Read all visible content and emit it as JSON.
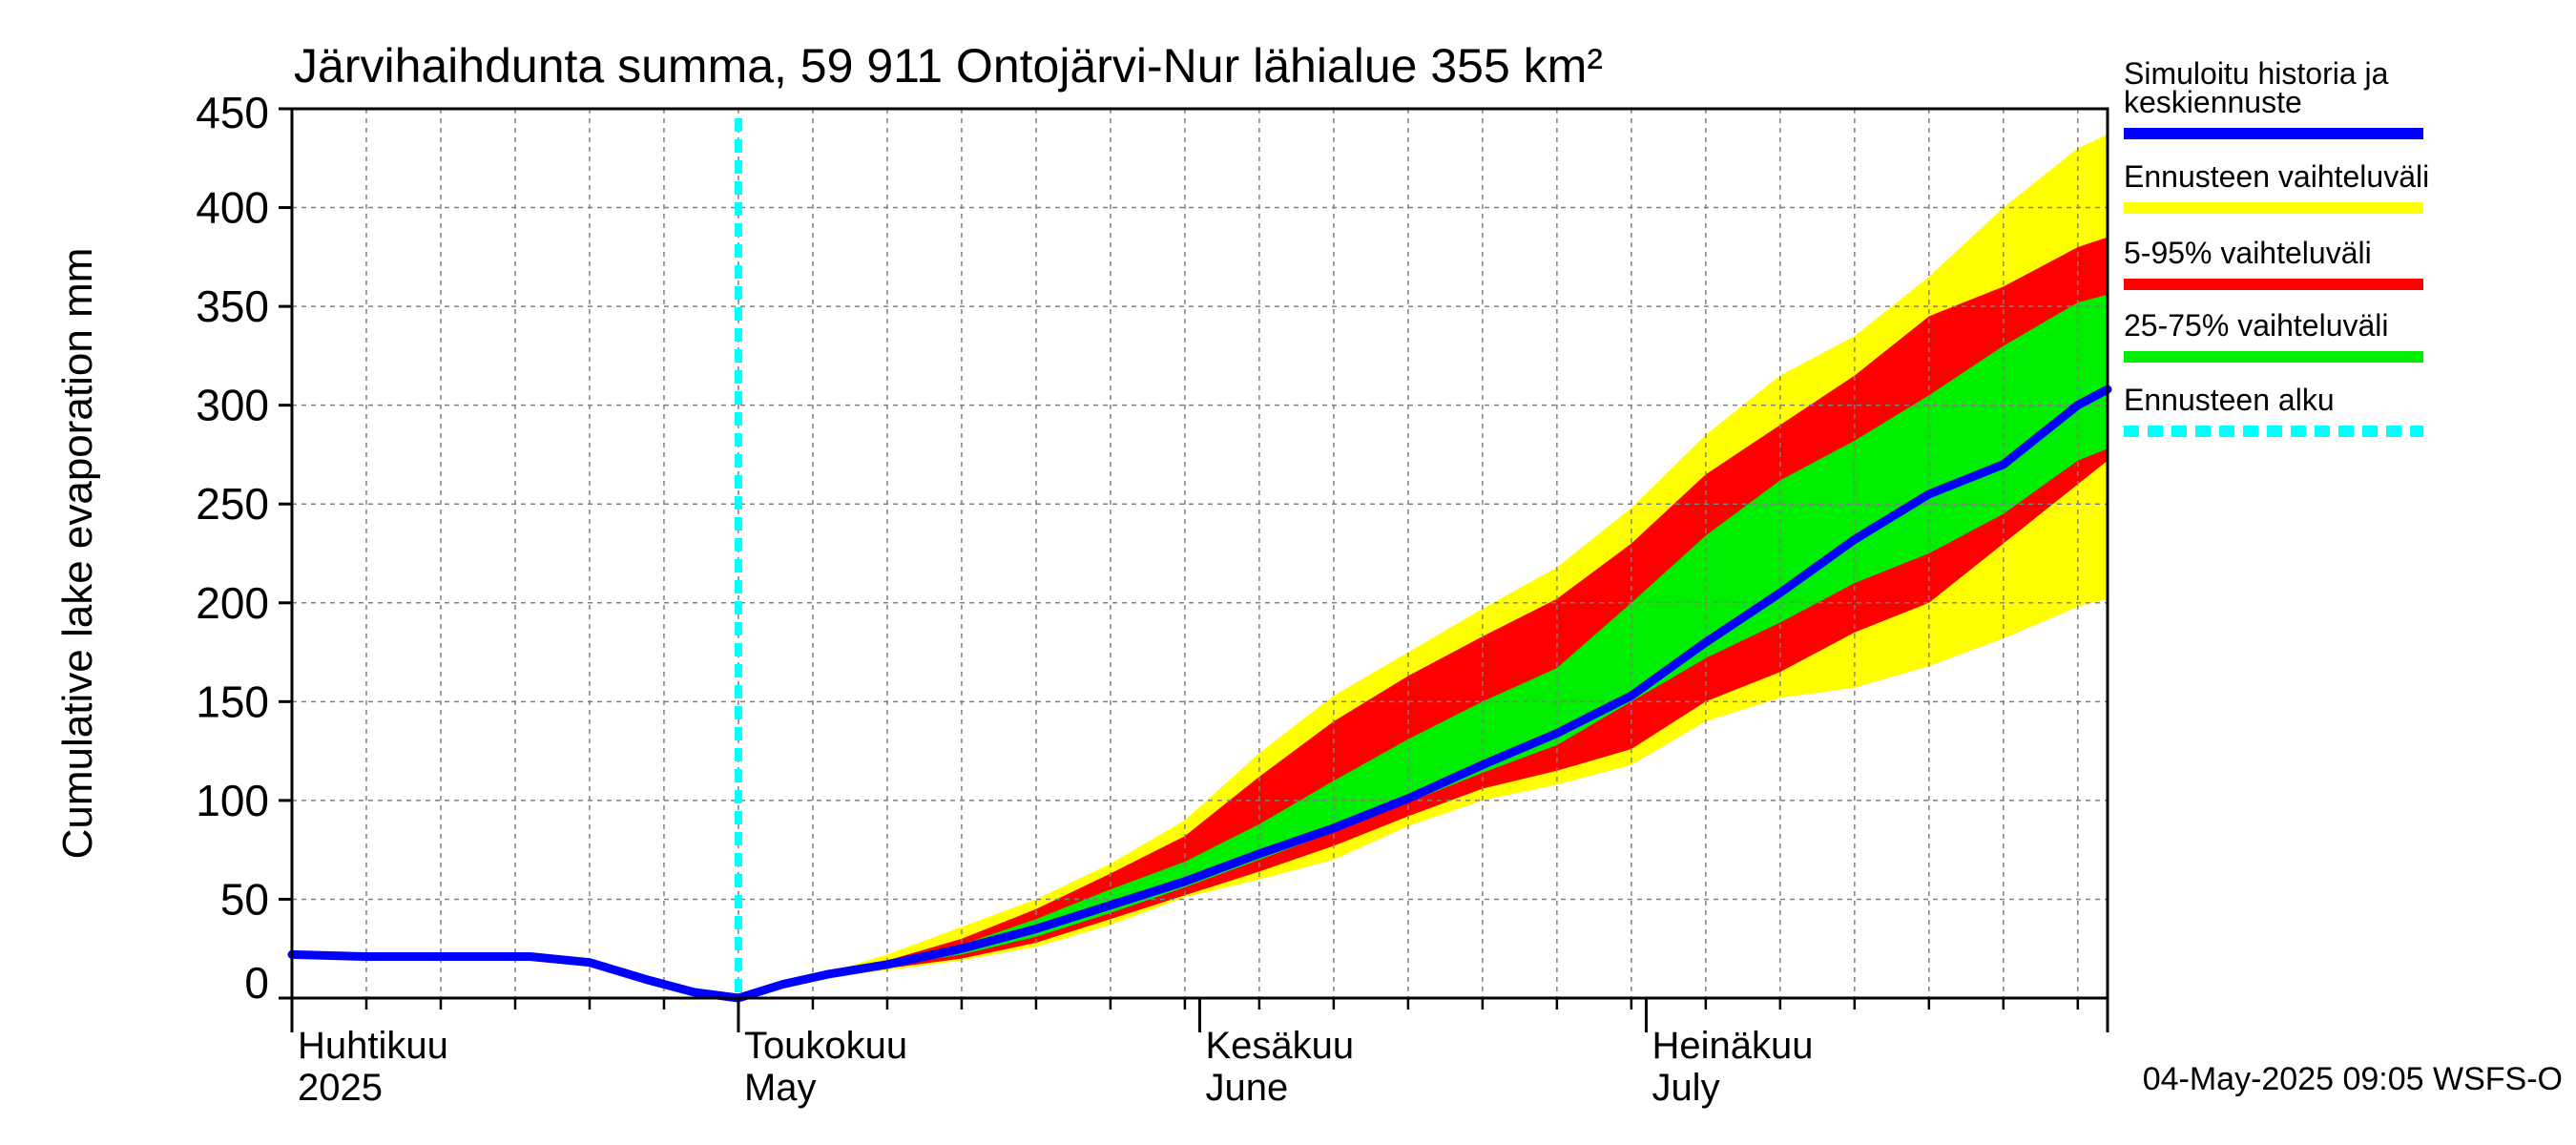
{
  "chart_data": {
    "type": "area",
    "title": "Järvihaihdunta summa, 59 911 Ontojärvi-Nur lähialue 355 km²",
    "ylabel": "Cumulative lake evaporation   mm",
    "xlabel": "",
    "ylim": [
      0,
      450
    ],
    "y_ticks": [
      "0",
      "50",
      "100",
      "150",
      "200",
      "250",
      "300",
      "350",
      "400",
      "450"
    ],
    "x_range_days": [
      0,
      122
    ],
    "month_labels": [
      {
        "day": 0,
        "fi": "Huhtikuu",
        "en": "2025"
      },
      {
        "day": 30,
        "fi": "Toukokuu",
        "en": "May"
      },
      {
        "day": 61,
        "fi": "Kesäkuu",
        "en": "June"
      },
      {
        "day": 91,
        "fi": "Heinäkuu",
        "en": "July"
      }
    ],
    "grid": true,
    "legend_position": "right",
    "forecast_start_day": 30,
    "legend": [
      {
        "label": "Simuloitu historia ja keskiennuste",
        "label_line1": "Simuloitu historia ja",
        "label_line2": "keskiennuste",
        "color": "#0000ff",
        "style": "solid"
      },
      {
        "label": "Ennusteen vaihteluväli",
        "color": "#ffff00",
        "style": "solid"
      },
      {
        "label": "5-95% vaihteluväli",
        "color": "#ff0000",
        "style": "solid"
      },
      {
        "label": "25-75% vaihteluväli",
        "color": "#00ee00",
        "style": "solid"
      },
      {
        "label": "Ennusteen alku",
        "color": "#00ffff",
        "style": "dashed"
      }
    ],
    "timestamp": "04-May-2025 09:05 WSFS-O",
    "colors": {
      "median": "#0000ff",
      "full_range": "#ffff00",
      "p5_95": "#ff0000",
      "p25_75": "#00ee00",
      "forecast_start": "#00ffff",
      "grid": "#808080"
    },
    "x": [
      0,
      5,
      10,
      16,
      20,
      24,
      27,
      30,
      33,
      36,
      40,
      45,
      50,
      55,
      60,
      65,
      70,
      75,
      80,
      85,
      90,
      95,
      100,
      105,
      110,
      115,
      120,
      122
    ],
    "series": [
      {
        "name": "Simuloitu historia ja keskiennuste",
        "role": "median",
        "values": [
          22,
          21,
          21,
          21,
          18,
          9,
          3,
          0,
          7,
          12,
          17,
          25,
          35,
          47,
          59,
          73,
          86,
          101,
          118,
          134,
          153,
          180,
          205,
          232,
          255,
          270,
          300,
          308
        ]
      },
      {
        "name": "Ennusteen vaihteluväli",
        "role": "band",
        "lower": [
          null,
          null,
          null,
          null,
          null,
          null,
          null,
          0,
          7,
          11,
          14,
          19,
          26,
          37,
          51,
          60,
          70,
          87,
          100,
          108,
          118,
          140,
          152,
          157,
          168,
          182,
          198,
          202
        ],
        "upper": [
          null,
          null,
          null,
          null,
          null,
          null,
          null,
          0,
          7,
          13,
          22,
          36,
          50,
          68,
          90,
          124,
          153,
          175,
          197,
          218,
          248,
          285,
          315,
          335,
          365,
          400,
          430,
          437
        ]
      },
      {
        "name": "5-95% vaihteluväli",
        "role": "band",
        "lower": [
          null,
          null,
          null,
          null,
          null,
          null,
          null,
          0,
          7,
          11,
          15,
          20,
          28,
          40,
          52,
          64,
          77,
          92,
          106,
          115,
          126,
          150,
          165,
          185,
          200,
          230,
          260,
          272
        ],
        "upper": [
          null,
          null,
          null,
          null,
          null,
          null,
          null,
          0,
          7,
          13,
          19,
          30,
          45,
          63,
          82,
          112,
          140,
          163,
          183,
          202,
          230,
          265,
          290,
          315,
          345,
          360,
          380,
          385
        ]
      },
      {
        "name": "25-75% vaihteluväli",
        "role": "band",
        "lower": [
          null,
          null,
          null,
          null,
          null,
          null,
          null,
          0,
          7,
          12,
          16,
          22,
          31,
          43,
          56,
          70,
          84,
          99,
          114,
          128,
          150,
          172,
          190,
          210,
          225,
          245,
          272,
          278
        ],
        "upper": [
          null,
          null,
          null,
          null,
          null,
          null,
          null,
          0,
          7,
          12,
          18,
          27,
          40,
          55,
          69,
          88,
          110,
          131,
          150,
          167,
          200,
          234,
          262,
          282,
          305,
          330,
          352,
          356
        ]
      }
    ]
  }
}
